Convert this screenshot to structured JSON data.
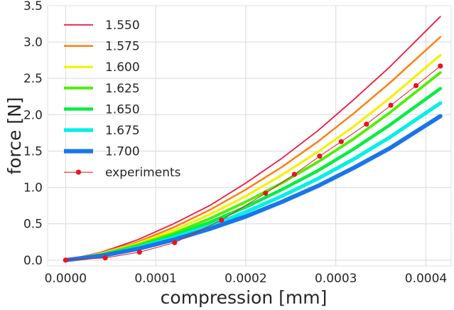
{
  "chart_data": {
    "type": "line",
    "xlabel": "compression [mm]",
    "ylabel": "force [N]",
    "xlim": [
      -2e-05,
      0.000428
    ],
    "ylim": [
      -0.08,
      3.5
    ],
    "xticks": [
      0.0,
      0.0001,
      0.0002,
      0.0003,
      0.0004
    ],
    "xtick_labels": [
      "0.0000",
      "0.0001",
      "0.0002",
      "0.0003",
      "0.0004"
    ],
    "yticks": [
      0.0,
      0.5,
      1.0,
      1.5,
      2.0,
      2.5,
      3.0,
      3.5
    ],
    "ytick_labels": [
      "0.0",
      "0.5",
      "1.0",
      "1.5",
      "2.0",
      "2.5",
      "3.0",
      "3.5"
    ],
    "grid": true,
    "legend_position": "top-left",
    "x": [
      0.0,
      4e-05,
      8e-05,
      0.00012,
      0.00016,
      0.0002,
      0.00024,
      0.00028,
      0.00032,
      0.00036,
      0.000416
    ],
    "series": [
      {
        "name": "1.550",
        "color": "#f0173c",
        "width": 1.8,
        "values": [
          0.0,
          0.11,
          0.28,
          0.5,
          0.75,
          1.06,
          1.4,
          1.78,
          2.21,
          2.66,
          3.35
        ]
      },
      {
        "name": "1.575",
        "color": "#ff7f0e",
        "width": 2.5,
        "values": [
          0.0,
          0.1,
          0.25,
          0.45,
          0.69,
          0.97,
          1.28,
          1.63,
          2.02,
          2.44,
          3.07
        ]
      },
      {
        "name": "1.600",
        "color": "#f2f200",
        "width": 3.2,
        "values": [
          0.0,
          0.09,
          0.23,
          0.41,
          0.63,
          0.88,
          1.17,
          1.49,
          1.84,
          2.23,
          2.82
        ]
      },
      {
        "name": "1.625",
        "color": "#4cf000",
        "width": 3.8,
        "values": [
          0.0,
          0.08,
          0.21,
          0.37,
          0.57,
          0.8,
          1.06,
          1.35,
          1.67,
          2.03,
          2.58
        ]
      },
      {
        "name": "1.650",
        "color": "#00ee44",
        "width": 4.5,
        "values": [
          0.0,
          0.07,
          0.19,
          0.34,
          0.52,
          0.73,
          0.97,
          1.23,
          1.53,
          1.86,
          2.36
        ]
      },
      {
        "name": "1.675",
        "color": "#00f0e8",
        "width": 5.2,
        "values": [
          0.0,
          0.065,
          0.17,
          0.31,
          0.47,
          0.66,
          0.88,
          1.12,
          1.39,
          1.69,
          2.16
        ]
      },
      {
        "name": "1.700",
        "color": "#1a75e8",
        "width": 6,
        "values": [
          0.0,
          0.06,
          0.155,
          0.28,
          0.43,
          0.6,
          0.8,
          1.02,
          1.27,
          1.54,
          1.98
        ]
      }
    ],
    "experiments": {
      "name": "experiments",
      "color": "#e8141e",
      "x": [
        0.0,
        4.4e-05,
        8.2e-05,
        0.000121,
        0.000173,
        0.000222,
        0.000254,
        0.000282,
        0.000306,
        0.000334,
        0.000361,
        0.000389,
        0.000416
      ],
      "y": [
        0.0,
        0.03,
        0.11,
        0.24,
        0.55,
        0.92,
        1.18,
        1.43,
        1.63,
        1.87,
        2.13,
        2.4,
        2.67
      ]
    }
  }
}
